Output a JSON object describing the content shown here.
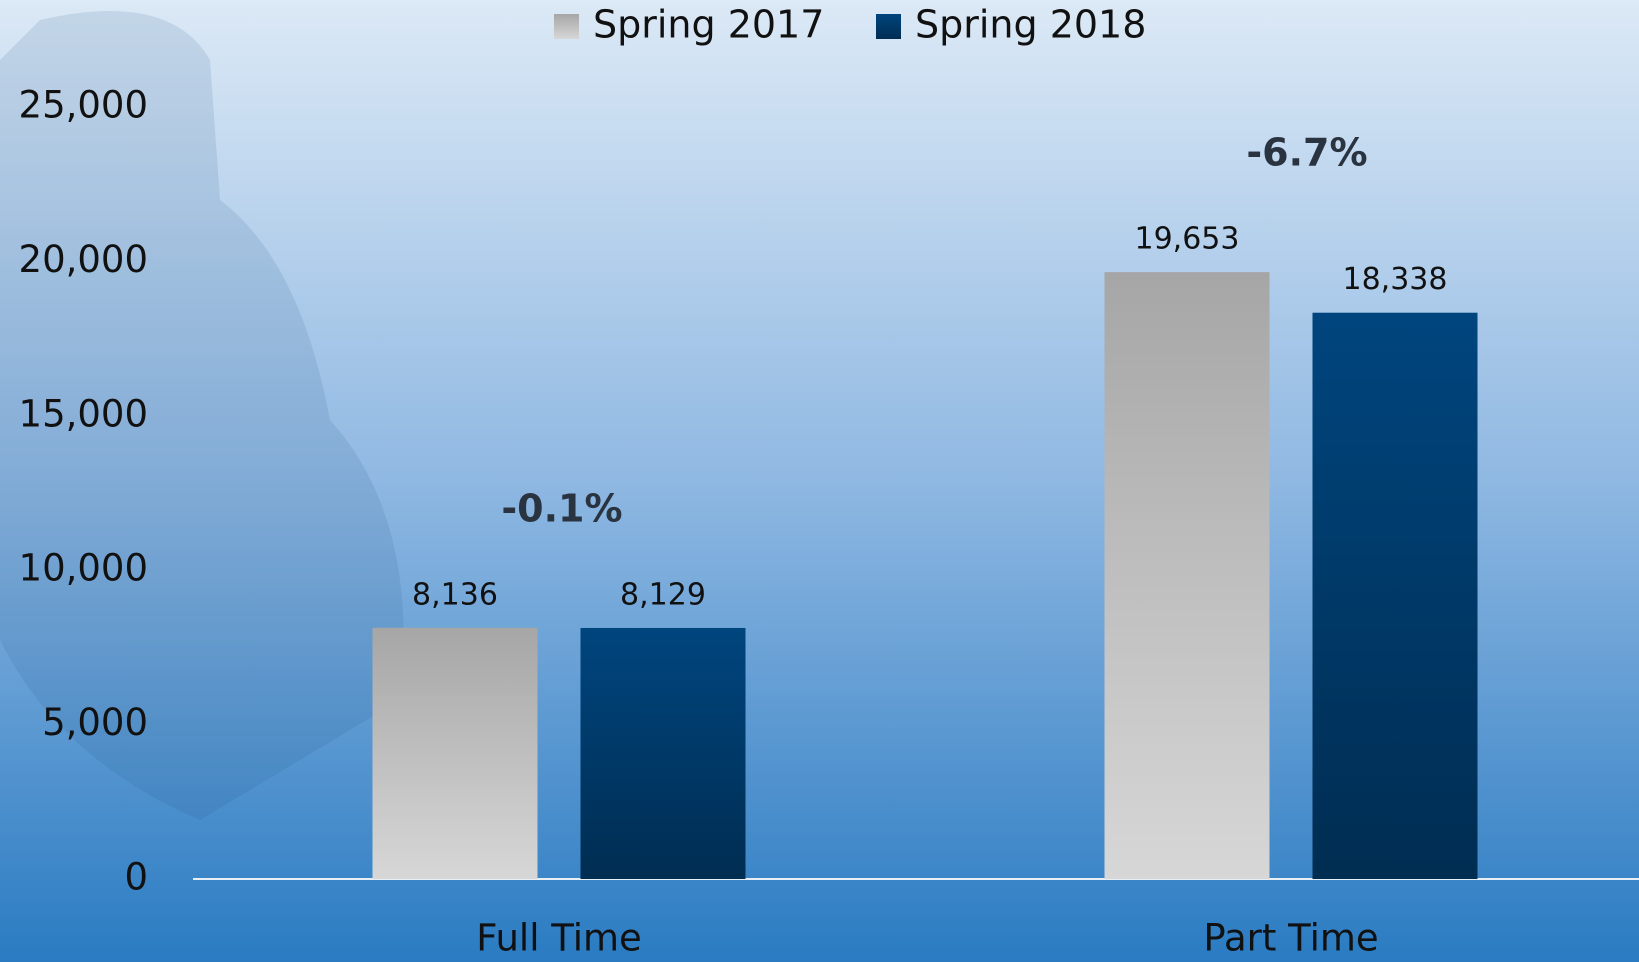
{
  "chart_data": {
    "type": "bar",
    "categories": [
      "Full Time",
      "Part Time"
    ],
    "series": [
      {
        "name": "Spring 2017",
        "color": "#a6a6a6",
        "values": [
          8136,
          19653
        ],
        "value_labels": [
          "8,136",
          "19,653"
        ]
      },
      {
        "name": "Spring 2018",
        "color": "#00457e",
        "values": [
          8129,
          18338
        ],
        "value_labels": [
          "8,129",
          "18,338"
        ]
      }
    ],
    "annotations": [
      "-0.1%",
      "-6.7%"
    ],
    "ylim": [
      0,
      25000
    ],
    "yticks": [
      0,
      {
        "value": 5000,
        "label": "5,000"
      },
      {
        "value": 10000,
        "label": "10,000"
      },
      {
        "value": 15000,
        "label": "15,000"
      },
      {
        "value": 20000,
        "label": "20,000"
      },
      {
        "value": 25000,
        "label": "25,000"
      }
    ],
    "legend": "top",
    "grid": false
  }
}
